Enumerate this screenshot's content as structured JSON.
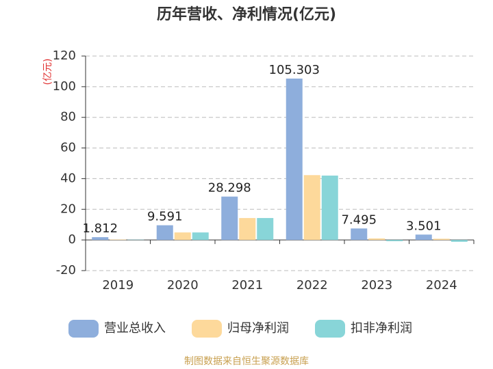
{
  "chart_data": {
    "type": "bar",
    "title": "历年营收、净利情况(亿元)",
    "y_label": "(亿元)",
    "categories": [
      "2019",
      "2020",
      "2021",
      "2022",
      "2023",
      "2024"
    ],
    "series": [
      {
        "name": "营业总收入",
        "color": "#8eaedc",
        "values": [
          1.812,
          9.591,
          28.298,
          105.303,
          7.495,
          3.501
        ],
        "labeled": true
      },
      {
        "name": "归母净利润",
        "color": "#fdd99b",
        "values": [
          0.3,
          4.9,
          14.3,
          42.3,
          1.0,
          0.8
        ]
      },
      {
        "name": "扣非净利润",
        "color": "#88d5d8",
        "values": [
          0.2,
          4.9,
          14.3,
          42.0,
          -0.8,
          -1.2
        ]
      }
    ],
    "ylim": [
      -20,
      120
    ],
    "yticks": [
      -20,
      0,
      20,
      40,
      60,
      80,
      100,
      120
    ],
    "grid": true,
    "source": "制图数据来自恒生聚源数据库"
  }
}
